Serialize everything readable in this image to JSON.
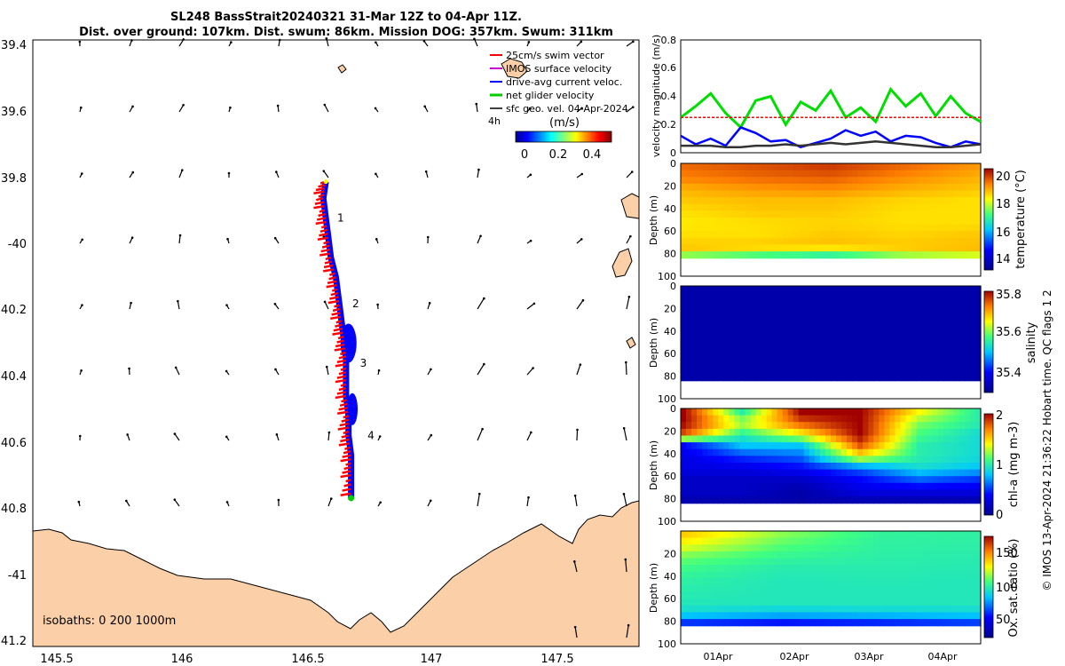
{
  "title": {
    "line1": "SL248 BassStrait20240321 31-Mar 12Z to 04-Apr 11Z.",
    "line2": "Dist. over ground: 107km. Dist. swum: 86km. Mission DOG: 357km. Swum: 311km"
  },
  "footer": "© IMOS 13-Apr-2024 21:36:22 Hobart time. QC flags 1  2",
  "map": {
    "isobaths_label": "isobaths: 0   200   1000m",
    "legend": [
      {
        "label": "25cm/s swim vector",
        "color": "#ff0000"
      },
      {
        "label": "IMOS surface velocity",
        "color": "#cc00cc"
      },
      {
        "label": "drive-avg current veloc.",
        "color": "#0000ff"
      },
      {
        "label": "net glider velocity",
        "color": "#00cc00"
      },
      {
        "label": "sfc geo. vel. 04-Apr-2024",
        "color": "#000000"
      }
    ],
    "legend_extra": "4h",
    "colorbar": {
      "label": "(m/s)",
      "ticks": [
        "0",
        "0.2",
        "0.4"
      ],
      "range": [
        -0.05,
        0.55
      ]
    },
    "lon_ticks": [
      "145.5",
      "146",
      "146.5",
      "147",
      "147.5"
    ],
    "lat_ticks": [
      "39.4",
      "39.6",
      "39.8",
      "-40",
      "40.2",
      "40.4",
      "40.6",
      "40.8",
      "-41",
      "41.2"
    ],
    "lon_range": [
      145.45,
      147.85
    ],
    "lat_range": [
      -41.22,
      -39.38
    ],
    "waypoints": [
      {
        "label": "1",
        "lon": 146.62,
        "lat": -39.92
      },
      {
        "label": "2",
        "lon": 146.68,
        "lat": -40.18
      },
      {
        "label": "3",
        "lon": 146.71,
        "lat": -40.36
      },
      {
        "label": "4",
        "lon": 146.74,
        "lat": -40.58
      }
    ],
    "track": [
      [
        146.61,
        -39.81
      ],
      [
        146.6,
        -39.86
      ],
      [
        146.61,
        -39.92
      ],
      [
        146.62,
        -39.98
      ],
      [
        146.63,
        -40.04
      ],
      [
        146.65,
        -40.1
      ],
      [
        146.66,
        -40.16
      ],
      [
        146.67,
        -40.22
      ],
      [
        146.68,
        -40.28
      ],
      [
        146.69,
        -40.34
      ],
      [
        146.69,
        -40.4
      ],
      [
        146.69,
        -40.46
      ],
      [
        146.7,
        -40.52
      ],
      [
        146.7,
        -40.58
      ],
      [
        146.71,
        -40.64
      ],
      [
        146.71,
        -40.7
      ],
      [
        146.71,
        -40.77
      ]
    ]
  },
  "chart_data": [
    {
      "type": "line",
      "ylabel": "velocity magnitude (m/s)",
      "ylim": [
        0,
        0.8
      ],
      "yticks": [
        "0",
        "0.2",
        "0.4",
        "0.6",
        "0.8"
      ],
      "x": [
        0,
        0.2,
        0.4,
        0.6,
        0.8,
        1.0,
        1.2,
        1.4,
        1.6,
        1.8,
        2.0,
        2.2,
        2.4,
        2.6,
        2.8,
        3.0,
        3.2,
        3.4,
        3.6,
        3.8,
        4.0
      ],
      "series": [
        {
          "color": "#00dd00",
          "values": [
            0.25,
            0.33,
            0.42,
            0.28,
            0.18,
            0.37,
            0.4,
            0.2,
            0.36,
            0.3,
            0.44,
            0.25,
            0.32,
            0.22,
            0.45,
            0.33,
            0.42,
            0.26,
            0.4,
            0.28,
            0.22
          ]
        },
        {
          "color": "#ff0000",
          "values": [
            0.25,
            0.25,
            0.25,
            0.25,
            0.25,
            0.25,
            0.25,
            0.25,
            0.25,
            0.25,
            0.25,
            0.25,
            0.25,
            0.25,
            0.25,
            0.25,
            0.25,
            0.25,
            0.25,
            0.25,
            0.25
          ]
        },
        {
          "color": "#0000ff",
          "values": [
            0.12,
            0.06,
            0.1,
            0.05,
            0.18,
            0.14,
            0.08,
            0.09,
            0.04,
            0.07,
            0.1,
            0.16,
            0.12,
            0.15,
            0.08,
            0.12,
            0.11,
            0.07,
            0.04,
            0.08,
            0.06
          ]
        },
        {
          "color": "#333333",
          "values": [
            0.05,
            0.05,
            0.05,
            0.04,
            0.04,
            0.05,
            0.05,
            0.06,
            0.05,
            0.06,
            0.07,
            0.06,
            0.07,
            0.08,
            0.07,
            0.06,
            0.05,
            0.04,
            0.04,
            0.05,
            0.06
          ]
        }
      ]
    },
    {
      "type": "heatmap",
      "ylabel": "Depth (m)",
      "clabel": "temperature (°C)",
      "ylim": [
        100,
        0
      ],
      "yticks": [
        "0",
        "20",
        "40",
        "60",
        "80",
        "100"
      ],
      "cticks": [
        "14",
        "16",
        "18",
        "20"
      ],
      "crange": [
        13.3,
        20.5
      ],
      "xticks": [
        "01Apr",
        "02Apr",
        "03Apr",
        "04Apr"
      ],
      "profile_depth": [
        0,
        10,
        20,
        30,
        40,
        50,
        60,
        70,
        75,
        80
      ],
      "values": [
        [
          19.6,
          19.4,
          19.0,
          18.8,
          18.6,
          18.5,
          18.6,
          18.8,
          18.8,
          17.0
        ],
        [
          19.8,
          19.6,
          19.2,
          18.9,
          18.8,
          18.6,
          18.6,
          18.8,
          18.4,
          16.6
        ],
        [
          20.0,
          19.7,
          19.3,
          18.9,
          18.8,
          18.7,
          18.8,
          18.9,
          18.0,
          16.4
        ],
        [
          19.6,
          19.3,
          19.0,
          18.7,
          18.6,
          18.6,
          18.7,
          18.8,
          18.7,
          17.2
        ],
        [
          19.2,
          19.0,
          18.8,
          18.6,
          18.6,
          18.6,
          18.8,
          18.9,
          18.9,
          17.6
        ]
      ]
    },
    {
      "type": "heatmap",
      "ylabel": "Depth (m)",
      "clabel": "salinity",
      "ylim": [
        100,
        0
      ],
      "yticks": [
        "0",
        "20",
        "40",
        "60",
        "80",
        "100"
      ],
      "cticks": [
        "35.4",
        "35.6",
        "35.8"
      ],
      "crange": [
        35.25,
        35.85
      ],
      "xticks": [
        "01Apr",
        "02Apr",
        "03Apr",
        "04Apr"
      ],
      "profile_depth": [
        0,
        40,
        80
      ],
      "values": [
        [
          35.28,
          35.28,
          35.28
        ],
        [
          35.28,
          35.28,
          35.28
        ]
      ]
    },
    {
      "type": "heatmap",
      "ylabel": "Depth (m)",
      "clabel": "chl-a (mg m-3)",
      "ylim": [
        100,
        0
      ],
      "yticks": [
        "0",
        "20",
        "40",
        "60",
        "80",
        "100"
      ],
      "cticks": [
        "0",
        "1",
        "2"
      ],
      "crange": [
        0,
        2
      ],
      "xticks": [
        "01Apr",
        "02Apr",
        "03Apr",
        "04Apr"
      ],
      "profile_depth": [
        0,
        10,
        20,
        30,
        40,
        50,
        60,
        70,
        80
      ],
      "values": [
        [
          2.0,
          2.0,
          1.8,
          0.4,
          0.3,
          0.3,
          0.2,
          0.2,
          0.1
        ],
        [
          1.0,
          1.3,
          1.0,
          0.8,
          0.5,
          0.3,
          0.2,
          0.2,
          0.1
        ],
        [
          2.0,
          1.8,
          1.4,
          0.8,
          0.6,
          0.4,
          0.2,
          0.1,
          0.1
        ],
        [
          2.0,
          2.0,
          2.0,
          1.8,
          1.4,
          0.6,
          0.4,
          0.3,
          0.1
        ],
        [
          1.4,
          1.2,
          1.1,
          1.0,
          1.0,
          0.9,
          0.6,
          0.3,
          0.1
        ],
        [
          1.0,
          1.0,
          0.9,
          0.9,
          0.9,
          0.8,
          0.5,
          0.3,
          0.1
        ]
      ]
    },
    {
      "type": "heatmap",
      "ylabel": "Depth (m)",
      "clabel": "Ox. sat. ratio (%)",
      "ylim": [
        100,
        0
      ],
      "yticks": [
        "20",
        "40",
        "60",
        "80",
        "100"
      ],
      "cticks": [
        "50",
        "100",
        "150"
      ],
      "crange": [
        30,
        175
      ],
      "xticks": [
        "01Apr",
        "02Apr",
        "03Apr",
        "04Apr"
      ],
      "profile_depth": [
        0,
        10,
        20,
        30,
        40,
        50,
        60,
        70,
        80
      ],
      "values": [
        [
          140,
          130,
          115,
          108,
          104,
          102,
          100,
          95,
          60
        ],
        [
          118,
          112,
          106,
          102,
          100,
          100,
          100,
          90,
          55
        ],
        [
          105,
          104,
          103,
          102,
          101,
          100,
          100,
          92,
          58
        ],
        [
          104,
          103,
          102,
          101,
          100,
          100,
          100,
          94,
          62
        ]
      ]
    }
  ]
}
